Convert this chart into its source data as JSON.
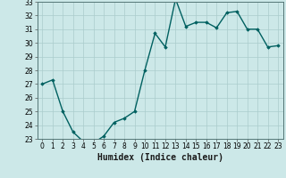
{
  "x": [
    0,
    1,
    2,
    3,
    4,
    5,
    6,
    7,
    8,
    9,
    10,
    11,
    12,
    13,
    14,
    15,
    16,
    17,
    18,
    19,
    20,
    21,
    22,
    23
  ],
  "y": [
    27,
    27.3,
    25,
    23.5,
    22.8,
    22.7,
    23.2,
    24.2,
    24.5,
    25,
    28,
    30.7,
    29.7,
    33.2,
    31.2,
    31.5,
    31.5,
    31.1,
    32.2,
    32.3,
    31,
    31,
    29.7,
    29.8
  ],
  "line_color": "#006060",
  "marker": "D",
  "marker_size": 1.8,
  "bg_color": "#cce8e8",
  "grid_color": "#aacccc",
  "xlabel": "Humidex (Indice chaleur)",
  "ylim": [
    23,
    33
  ],
  "xlim": [
    -0.5,
    23.5
  ],
  "yticks": [
    23,
    24,
    25,
    26,
    27,
    28,
    29,
    30,
    31,
    32,
    33
  ],
  "xticks": [
    0,
    1,
    2,
    3,
    4,
    5,
    6,
    7,
    8,
    9,
    10,
    11,
    12,
    13,
    14,
    15,
    16,
    17,
    18,
    19,
    20,
    21,
    22,
    23
  ],
  "tick_fontsize": 5.5,
  "xlabel_fontsize": 7,
  "line_width": 1.0
}
